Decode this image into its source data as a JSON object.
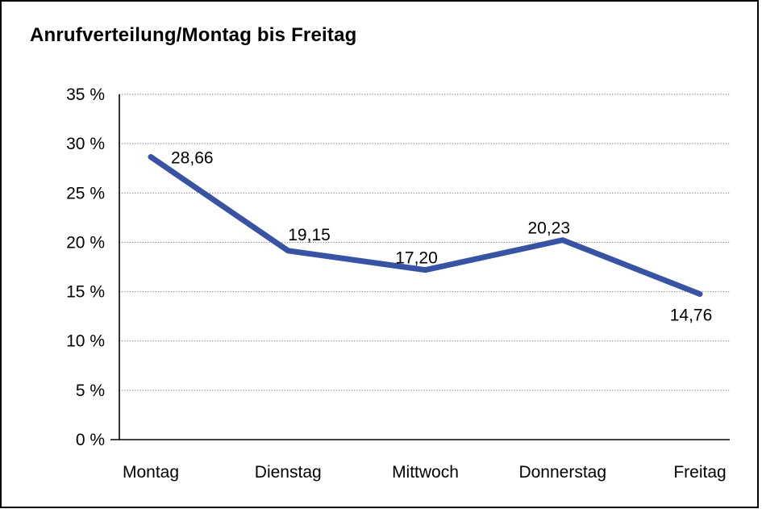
{
  "chart_data": {
    "type": "line",
    "title": "Anrufverteilung/Montag bis Freitag",
    "categories": [
      "Montag",
      "Dienstag",
      "Mittwoch",
      "Donnerstag",
      "Freitag"
    ],
    "series": [
      {
        "name": "Anrufverteilung",
        "values": [
          28.66,
          19.15,
          17.2,
          20.23,
          14.76
        ]
      }
    ],
    "value_labels": [
      "28,66",
      "19,15",
      "17,20",
      "20,23",
      "14,76"
    ],
    "yticks": [
      0,
      5,
      10,
      15,
      20,
      25,
      30,
      35
    ],
    "ytick_labels": [
      "0 %",
      "5 %",
      "10 %",
      "15 %",
      "20 %",
      "25 %",
      "30 %",
      "35 %"
    ],
    "ylim": [
      0,
      35
    ],
    "xlabel": "",
    "ylabel": "",
    "legend": "none",
    "grid": "horizontal-dotted",
    "line_color": "#3853A3",
    "axis_color": "#000000",
    "gridline_color": "#555555",
    "text_color": "#000000",
    "background": "#FFFFFF"
  }
}
